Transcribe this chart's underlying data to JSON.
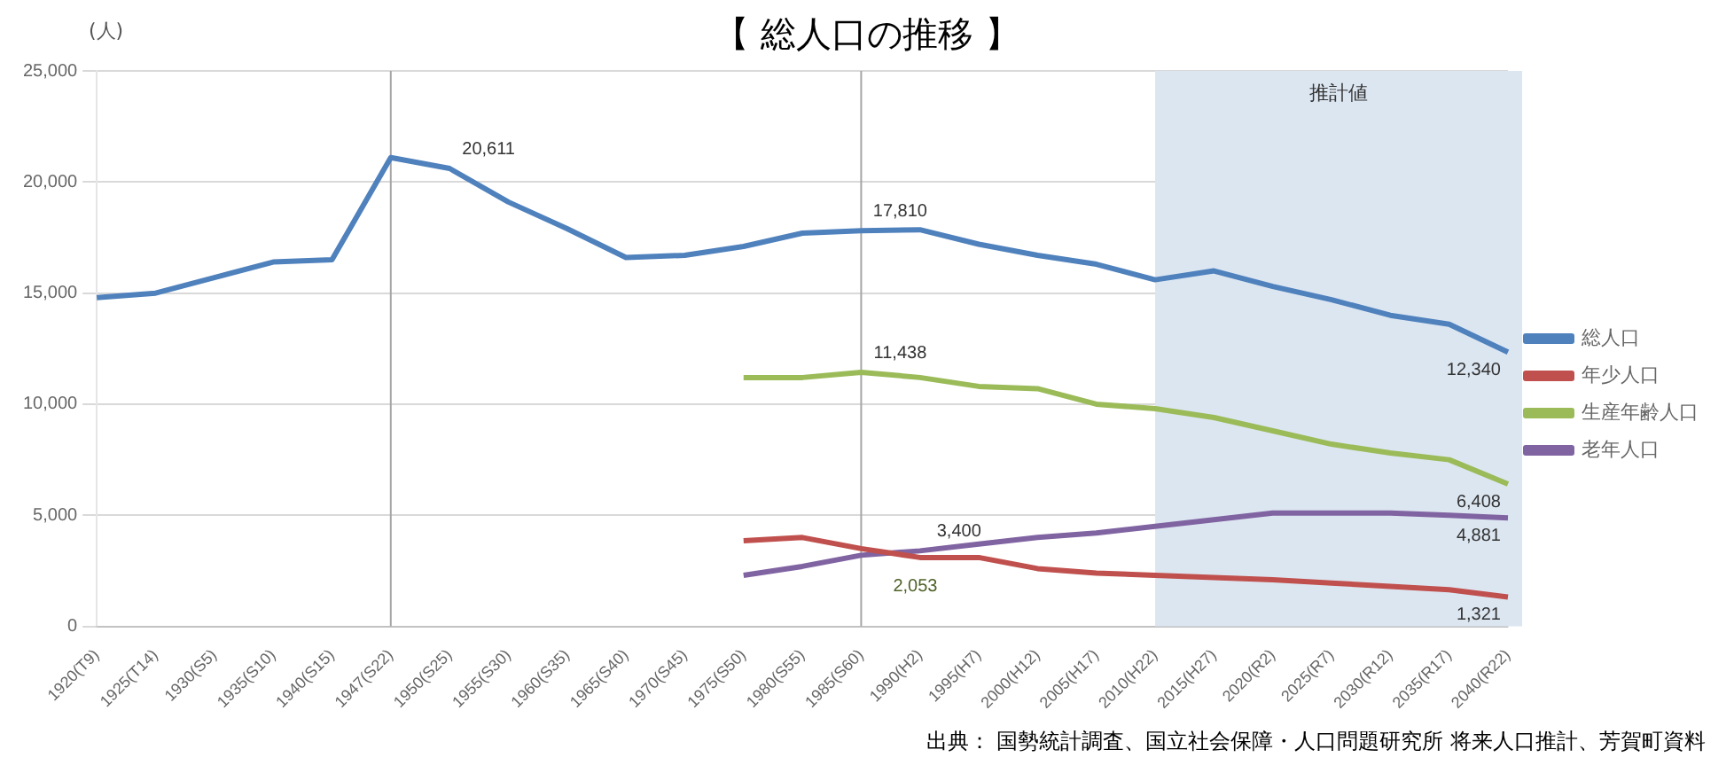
{
  "chart_data": {
    "type": "line",
    "title": "【 総人口の推移 】",
    "ylabel": "(人)",
    "categories": [
      "1920(T9)",
      "1925(T14)",
      "1930(S5)",
      "1935(S10)",
      "1940(S15)",
      "1947(S22)",
      "1950(S25)",
      "1955(S30)",
      "1960(S35)",
      "1965(S40)",
      "1970(S45)",
      "1975(S50)",
      "1980(S55)",
      "1985(S60)",
      "1990(H2)",
      "1995(H7)",
      "2000(H12)",
      "2005(H17)",
      "2010(H22)",
      "2015(H27)",
      "2020(R2)",
      "2025(R7)",
      "2030(R12)",
      "2035(R17)",
      "2040(R22)"
    ],
    "series": [
      {
        "name": "総人口",
        "color": "#4f81bd",
        "values": [
          14800,
          15000,
          15700,
          16400,
          16500,
          21100,
          20611,
          19100,
          17900,
          16600,
          16700,
          17100,
          17700,
          17810,
          17850,
          17200,
          16700,
          16300,
          15600,
          16000,
          15300,
          14700,
          14000,
          13600,
          12340
        ],
        "value_labels": [
          null,
          null,
          null,
          null,
          null,
          null,
          "20,611",
          null,
          null,
          null,
          null,
          null,
          null,
          "17,810",
          null,
          null,
          null,
          null,
          null,
          null,
          null,
          null,
          null,
          null,
          "12,340"
        ]
      },
      {
        "name": "年少人口",
        "color": "#c0504d",
        "values": [
          null,
          null,
          null,
          null,
          null,
          null,
          null,
          null,
          null,
          null,
          null,
          3850,
          4000,
          3500,
          3100,
          3100,
          2600,
          2400,
          2300,
          2200,
          2100,
          1950,
          1800,
          1650,
          1321
        ],
        "value_labels": [
          null,
          null,
          null,
          null,
          null,
          null,
          null,
          null,
          null,
          null,
          null,
          null,
          null,
          null,
          null,
          null,
          null,
          null,
          null,
          null,
          null,
          null,
          null,
          null,
          "1,321"
        ]
      },
      {
        "name": "生産年齢人口",
        "color": "#9bbb59",
        "values": [
          null,
          null,
          null,
          null,
          null,
          null,
          null,
          null,
          null,
          null,
          null,
          11200,
          11200,
          11438,
          11200,
          10800,
          10700,
          10000,
          9800,
          9400,
          8800,
          8200,
          7800,
          7500,
          6408
        ],
        "value_labels": [
          null,
          null,
          null,
          null,
          null,
          null,
          null,
          null,
          null,
          null,
          null,
          null,
          null,
          "11,438",
          null,
          null,
          null,
          null,
          null,
          null,
          null,
          null,
          null,
          null,
          "6,408"
        ]
      },
      {
        "name": "老年人口",
        "color": "#8064a2",
        "values": [
          null,
          null,
          null,
          null,
          null,
          null,
          null,
          null,
          null,
          null,
          null,
          2300,
          2700,
          3200,
          3400,
          3700,
          4000,
          4200,
          4500,
          4800,
          5100,
          5100,
          5100,
          5000,
          4881
        ],
        "value_labels": [
          null,
          null,
          null,
          null,
          null,
          null,
          null,
          null,
          null,
          null,
          null,
          null,
          null,
          null,
          "3,400",
          null,
          null,
          null,
          null,
          null,
          null,
          null,
          null,
          null,
          "4,881"
        ]
      }
    ],
    "ylim": [
      0,
      25000
    ],
    "yticks": [
      0,
      {
        "value": 5000,
        "label": "5,000"
      },
      {
        "value": 10000,
        "label": "10,000"
      },
      {
        "value": 15000,
        "label": "15,000"
      },
      {
        "value": 20000,
        "label": "20,000"
      },
      {
        "value": 25000,
        "label": "25,000"
      }
    ],
    "grid": "y",
    "legend": "right",
    "marker": "none",
    "line_style": "solid",
    "bands": [
      {
        "axis": "x",
        "from": "2010(H22)",
        "to": "2040(R22)",
        "label": "推計値",
        "color": "#dce6f1"
      }
    ],
    "ref_lines": [
      {
        "axis": "x",
        "value": "1947(S22)",
        "color": "#a6a6a6"
      },
      {
        "axis": "x",
        "value": "1985(S60)",
        "color": "#a6a6a6"
      }
    ],
    "annotations": [
      "2,053",
      "出典： 国勢統計調査、国立社会保障・人口問題研究所 将来人口推計、芳賀町資料"
    ]
  }
}
